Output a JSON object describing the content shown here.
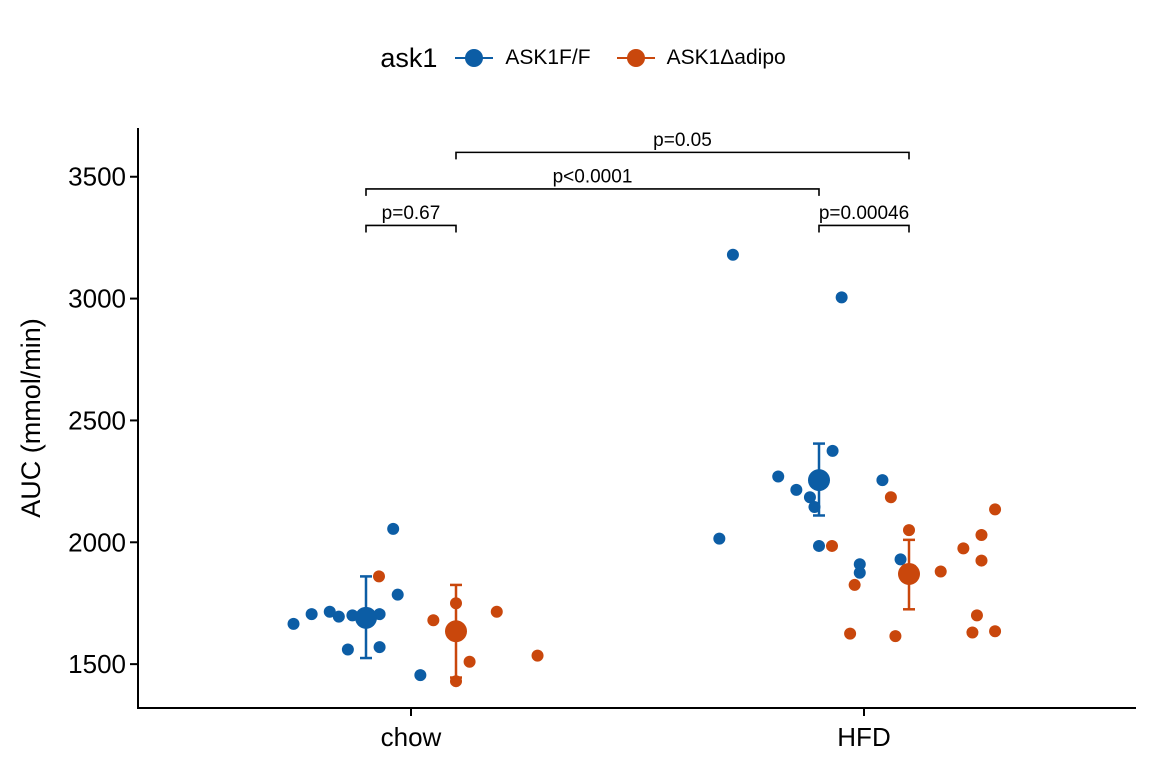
{
  "legend": {
    "title": "ask1",
    "items": [
      {
        "label": "ASK1F/F",
        "color": "#0C5DA5"
      },
      {
        "label": "ASK1Δadipo",
        "color": "#C9470C"
      }
    ]
  },
  "chart_data": {
    "type": "scatter",
    "title": "",
    "xlabel": "",
    "ylabel": "AUC (mmol/min)",
    "categories": [
      "chow",
      "HFD"
    ],
    "ylim": [
      1320,
      3700
    ],
    "yticks": [
      1500,
      2000,
      2500,
      3000,
      3500
    ],
    "grid": false,
    "legend_position": "top",
    "series": [
      {
        "name": "ASK1F/F",
        "color": "#0C5DA5",
        "groups": [
          {
            "category": "chow",
            "mean": 1690,
            "err_low": 1525,
            "err_high": 1860,
            "points": [
              {
                "dx": -0.16,
                "y": 1665
              },
              {
                "dx": -0.12,
                "y": 1705
              },
              {
                "dx": -0.08,
                "y": 1715
              },
              {
                "dx": -0.06,
                "y": 1695
              },
              {
                "dx": -0.03,
                "y": 1700
              },
              {
                "dx": -0.04,
                "y": 1560
              },
              {
                "dx": 0.03,
                "y": 1705
              },
              {
                "dx": 0.03,
                "y": 1570
              },
              {
                "dx": 0.06,
                "y": 2055
              },
              {
                "dx": 0.07,
                "y": 1785
              },
              {
                "dx": 0.12,
                "y": 1455
              }
            ]
          },
          {
            "category": "HFD",
            "mean": 2255,
            "err_low": 2110,
            "err_high": 2405,
            "points": [
              {
                "dx": -0.22,
                "y": 2015
              },
              {
                "dx": -0.19,
                "y": 3180
              },
              {
                "dx": -0.09,
                "y": 2270
              },
              {
                "dx": -0.05,
                "y": 2215
              },
              {
                "dx": -0.02,
                "y": 2185
              },
              {
                "dx": -0.01,
                "y": 2145
              },
              {
                "dx": 0.0,
                "y": 1985
              },
              {
                "dx": 0.03,
                "y": 2375
              },
              {
                "dx": 0.05,
                "y": 3005
              },
              {
                "dx": 0.09,
                "y": 1910
              },
              {
                "dx": 0.09,
                "y": 1875
              },
              {
                "dx": 0.14,
                "y": 2255
              },
              {
                "dx": 0.18,
                "y": 1930
              }
            ]
          }
        ]
      },
      {
        "name": "ASK1Δadipo",
        "color": "#C9470C",
        "groups": [
          {
            "category": "chow",
            "mean": 1635,
            "err_low": 1445,
            "err_high": 1825,
            "points": [
              {
                "dx": -0.17,
                "y": 1860
              },
              {
                "dx": -0.05,
                "y": 1680
              },
              {
                "dx": 0.0,
                "y": 1430
              },
              {
                "dx": 0.0,
                "y": 1750
              },
              {
                "dx": 0.03,
                "y": 1510
              },
              {
                "dx": 0.09,
                "y": 1715
              },
              {
                "dx": 0.18,
                "y": 1535
              }
            ]
          },
          {
            "category": "HFD",
            "mean": 1870,
            "err_low": 1725,
            "err_high": 2010,
            "points": [
              {
                "dx": -0.17,
                "y": 1985
              },
              {
                "dx": -0.13,
                "y": 1625
              },
              {
                "dx": -0.12,
                "y": 1825
              },
              {
                "dx": -0.04,
                "y": 2185
              },
              {
                "dx": -0.03,
                "y": 1615
              },
              {
                "dx": 0.0,
                "y": 2050
              },
              {
                "dx": 0.07,
                "y": 1880
              },
              {
                "dx": 0.12,
                "y": 1975
              },
              {
                "dx": 0.14,
                "y": 1630
              },
              {
                "dx": 0.15,
                "y": 1700
              },
              {
                "dx": 0.16,
                "y": 2030
              },
              {
                "dx": 0.16,
                "y": 1925
              },
              {
                "dx": 0.19,
                "y": 2135
              },
              {
                "dx": 0.19,
                "y": 1635
              }
            ]
          }
        ]
      }
    ],
    "annotations": [
      {
        "label": "p=0.67",
        "from": [
          "chow",
          "ASK1F/F"
        ],
        "to": [
          "chow",
          "ASK1Δadipo"
        ],
        "y_bracket": 3300,
        "y_label": 3310
      },
      {
        "label": "p<0.0001",
        "from": [
          "chow",
          "ASK1F/F"
        ],
        "to": [
          "HFD",
          "ASK1F/F"
        ],
        "y_bracket": 3450,
        "y_label": 3460
      },
      {
        "label": "p=0.05",
        "from": [
          "chow",
          "ASK1Δadipo"
        ],
        "to": [
          "HFD",
          "ASK1Δadipo"
        ],
        "y_bracket": 3600,
        "y_label": 3610
      },
      {
        "label": "p=0.00046",
        "from": [
          "HFD",
          "ASK1F/F"
        ],
        "to": [
          "HFD",
          "ASK1Δadipo"
        ],
        "y_bracket": 3300,
        "y_label": 3310
      }
    ]
  }
}
